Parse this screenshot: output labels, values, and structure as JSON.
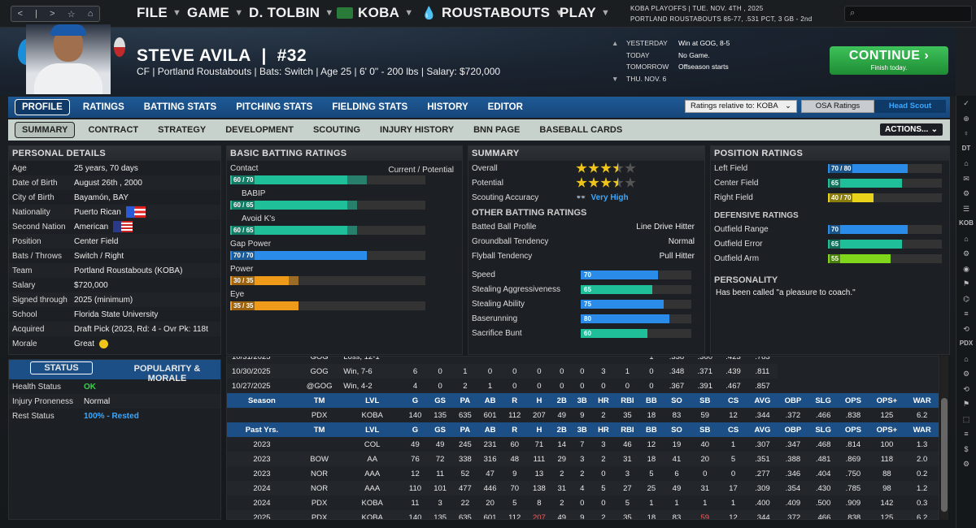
{
  "topbar": {
    "nav": {
      "back": "<",
      "menu": "|",
      "forward": ">",
      "favorite": "☆",
      "home": "⌂"
    },
    "menus": [
      {
        "label": "FILE"
      },
      {
        "label": "GAME"
      },
      {
        "label": "D. TOLBIN"
      },
      {
        "label": "KOBA"
      },
      {
        "label": "ROUSTABOUTS"
      },
      {
        "label": "PLAY"
      }
    ],
    "league_line1": "KOBA PLAYOFFS  |  TUE. NOV. 4TH , 2025",
    "league_line2": "PORTLAND ROUSTABOUTS  85-77, .531 PCT, 3 GB - 2nd",
    "search_placeholder": ""
  },
  "header": {
    "player_name": "STEVE AVILA",
    "number": "#32",
    "sep": "|",
    "info": "CF | Portland Roustabouts  |  Bats: Switch  |  Age 25  |  6' 0\" - 200 lbs  |  Salary: $720,000",
    "schedule": [
      {
        "day": "YESTERDAY",
        "text": "Win at GOG, 8-5"
      },
      {
        "day": "TODAY",
        "text": "No Game."
      },
      {
        "day": "TOMORROW",
        "text": "Offseason starts"
      },
      {
        "day": "THU. NOV. 6",
        "text": ""
      }
    ],
    "continue_label": "CONTINUE",
    "continue_sub": "Finish today."
  },
  "tabs": [
    "PROFILE",
    "RATINGS",
    "BATTING STATS",
    "PITCHING STATS",
    "FIELDING STATS",
    "HISTORY",
    "EDITOR"
  ],
  "subtabs": [
    "SUMMARY",
    "CONTRACT",
    "STRATEGY",
    "DEVELOPMENT",
    "SCOUTING",
    "INJURY HISTORY",
    "BNN PAGE",
    "BASEBALL CARDS"
  ],
  "ratings_select": "Ratings relative to: KOBA",
  "osa_label": "OSA Ratings",
  "scout_label": "Head Scout",
  "actions_label": "ACTIONS...",
  "personal": {
    "title": "PERSONAL DETAILS",
    "rows": [
      {
        "k": "Age",
        "v": "25 years, 70 days"
      },
      {
        "k": "Date of Birth",
        "v": "August 26th , 2000"
      },
      {
        "k": "City of Birth",
        "v": "Bayamón, BAY"
      },
      {
        "k": "Nationality",
        "v": "Puerto Rican"
      },
      {
        "k": "Second Nation",
        "v": "American"
      },
      {
        "k": "Position",
        "v": "Center Field"
      },
      {
        "k": "Bats / Throws",
        "v": "Switch / Right"
      },
      {
        "k": "Team",
        "v": "Portland Roustabouts (KOBA)"
      },
      {
        "k": "Salary",
        "v": "$720,000"
      },
      {
        "k": "Signed through",
        "v": "2025 (minimum)"
      },
      {
        "k": "School",
        "v": "Florida State University"
      },
      {
        "k": "Acquired",
        "v": "Draft Pick (2023, Rd: 4 - Ovr Pk: 118t"
      },
      {
        "k": "Morale",
        "v": "Great"
      }
    ]
  },
  "status": {
    "tab1": "STATUS",
    "tab2": "POPULARITY & MORALE",
    "rows": [
      {
        "k": "Health Status",
        "v": "OK"
      },
      {
        "k": "Injury Proneness",
        "v": "Normal"
      },
      {
        "k": "Rest Status",
        "v": "100% - Rested"
      }
    ]
  },
  "batting": {
    "title": "BASIC BATTING RATINGS",
    "cols": "Current / Potential",
    "rows": [
      {
        "label": "Contact",
        "text": "60 / 70",
        "cur": 0.6,
        "pot": 0.7,
        "color": "#1fbf9a"
      },
      {
        "label": "BABIP",
        "text": "60 / 65",
        "cur": 0.6,
        "pot": 0.65,
        "color": "#1fbf9a"
      },
      {
        "label": "Avoid K's",
        "text": "60 / 65",
        "cur": 0.6,
        "pot": 0.65,
        "color": "#1fbf9a"
      },
      {
        "label": "Gap Power",
        "text": "70 / 70",
        "cur": 0.7,
        "pot": 0.7,
        "color": "#2a8ce8"
      },
      {
        "label": "Power",
        "text": "30 / 35",
        "cur": 0.3,
        "pot": 0.35,
        "color": "#f09a1a"
      },
      {
        "label": "Eye",
        "text": "35 / 35",
        "cur": 0.35,
        "pot": 0.35,
        "color": "#f09a1a"
      }
    ]
  },
  "summary": {
    "title": "SUMMARY",
    "overall_label": "Overall",
    "overall_stars": 3.5,
    "potential_label": "Potential",
    "potential_stars": 3.5,
    "scout_label": "Scouting Accuracy",
    "scout_value": "Very High",
    "other_title": "OTHER BATTING RATINGS",
    "other": [
      {
        "k": "Batted Ball Profile",
        "v": "Line Drive Hitter"
      },
      {
        "k": "Groundball Tendency",
        "v": "Normal"
      },
      {
        "k": "Flyball Tendency",
        "v": "Pull Hitter"
      }
    ],
    "run": [
      {
        "k": "Speed",
        "v": "70",
        "r": 0.7,
        "color": "#2a8ce8"
      },
      {
        "k": "Stealing Aggressiveness",
        "v": "65",
        "r": 0.65,
        "color": "#1fbf9a"
      },
      {
        "k": "Stealing Ability",
        "v": "75",
        "r": 0.75,
        "color": "#2a8ce8"
      },
      {
        "k": "Baserunning",
        "v": "80",
        "r": 0.8,
        "color": "#2a8ce8"
      },
      {
        "k": "Sacrifice Bunt",
        "v": "60",
        "r": 0.6,
        "color": "#1fbf9a"
      }
    ]
  },
  "position": {
    "title": "POSITION RATINGS",
    "rows": [
      {
        "k": "Left Field",
        "v": "70 / 80",
        "r": 0.7,
        "color": "#2a8ce8"
      },
      {
        "k": "Center Field",
        "v": "65",
        "r": 0.65,
        "color": "#1fbf9a"
      },
      {
        "k": "Right Field",
        "v": "40 / 70",
        "r": 0.4,
        "color": "#e8d21a"
      }
    ],
    "def_title": "DEFENSIVE RATINGS",
    "def": [
      {
        "k": "Outfield Range",
        "v": "70",
        "r": 0.7,
        "color": "#2a8ce8"
      },
      {
        "k": "Outfield Error",
        "v": "65",
        "r": 0.65,
        "color": "#1fbf9a"
      },
      {
        "k": "Outfield Arm",
        "v": "55",
        "r": 0.55,
        "color": "#7fd61a"
      }
    ],
    "pers_title": "PERSONALITY",
    "pers_text": "Has been called \"a pleasure to coach.\""
  },
  "games": [
    [
      "10/31/2025",
      "GOG",
      "Loss, 12-1",
      "",
      "",
      "",
      "",
      "",
      "",
      "",
      "",
      "",
      "",
      "1",
      ".338",
      ".360",
      ".423",
      ".783"
    ],
    [
      "10/30/2025",
      "GOG",
      "Win, 7-6",
      "6",
      "0",
      "1",
      "0",
      "0",
      "0",
      "0",
      "0",
      "3",
      "1",
      "0",
      ".348",
      ".371",
      ".439",
      ".811"
    ],
    [
      "10/27/2025",
      "@GOG",
      "Win, 4-2",
      "4",
      "0",
      "2",
      "1",
      "0",
      "0",
      "0",
      "0",
      "0",
      "0",
      "0",
      ".367",
      ".391",
      ".467",
      ".857"
    ]
  ],
  "stat_headers": [
    "Season",
    "TM",
    "LVL",
    "G",
    "GS",
    "PA",
    "AB",
    "R",
    "H",
    "2B",
    "3B",
    "HR",
    "RBI",
    "BB",
    "SO",
    "SB",
    "CS",
    "AVG",
    "OBP",
    "SLG",
    "OPS",
    "OPS+",
    "WAR"
  ],
  "season_row": [
    "",
    "PDX",
    "KOBA",
    "140",
    "135",
    "635",
    "601",
    "112",
    "207",
    "49",
    "9",
    "2",
    "35",
    "18",
    "83",
    "59",
    "12",
    ".344",
    ".372",
    ".466",
    ".838",
    "125",
    "6.2"
  ],
  "past_headers": [
    "Past Yrs.",
    "TM",
    "LVL",
    "G",
    "GS",
    "PA",
    "AB",
    "R",
    "H",
    "2B",
    "3B",
    "HR",
    "RBI",
    "BB",
    "SO",
    "SB",
    "CS",
    "AVG",
    "OBP",
    "SLG",
    "OPS",
    "OPS+",
    "WAR"
  ],
  "past_rows": [
    [
      "2023",
      "",
      "COL",
      "49",
      "49",
      "245",
      "231",
      "60",
      "71",
      "14",
      "7",
      "3",
      "46",
      "12",
      "19",
      "40",
      "1",
      ".307",
      ".347",
      ".468",
      ".814",
      "100",
      "1.3"
    ],
    [
      "2023",
      "BOW",
      "AA",
      "76",
      "72",
      "338",
      "316",
      "48",
      "111",
      "29",
      "3",
      "2",
      "31",
      "18",
      "41",
      "20",
      "5",
      ".351",
      ".388",
      ".481",
      ".869",
      "118",
      "2.0"
    ],
    [
      "2023",
      "NOR",
      "AAA",
      "12",
      "11",
      "52",
      "47",
      "9",
      "13",
      "2",
      "2",
      "0",
      "3",
      "5",
      "6",
      "0",
      "0",
      ".277",
      ".346",
      ".404",
      ".750",
      "88",
      "0.2"
    ],
    [
      "2024",
      "NOR",
      "AAA",
      "110",
      "101",
      "477",
      "446",
      "70",
      "138",
      "31",
      "4",
      "5",
      "27",
      "25",
      "49",
      "31",
      "17",
      ".309",
      ".354",
      ".430",
      ".785",
      "98",
      "1.2"
    ],
    [
      "2024",
      "PDX",
      "KOBA",
      "11",
      "3",
      "22",
      "20",
      "5",
      "8",
      "2",
      "0",
      "0",
      "5",
      "1",
      "1",
      "1",
      "1",
      ".400",
      ".409",
      ".500",
      ".909",
      "142",
      "0.3"
    ],
    [
      "2025",
      "PDX",
      "KOBA",
      "140",
      "135",
      "635",
      "601",
      "112",
      "207",
      "49",
      "9",
      "2",
      "35",
      "18",
      "83",
      "59",
      "12",
      ".344",
      ".372",
      ".466",
      ".838",
      "125",
      "6.2"
    ]
  ],
  "sidebar": [
    "✓",
    "⊕",
    "♀",
    "DT",
    "⌂",
    "✉",
    "⚙",
    "☰",
    "KOB",
    "⌂",
    "⚙",
    "◉",
    "⚑",
    "⌬",
    "≡",
    "⟲",
    "PDX",
    "⌂",
    "⚙",
    "⟲",
    "⚑",
    "⬚",
    "≡",
    "$",
    "⚙"
  ]
}
